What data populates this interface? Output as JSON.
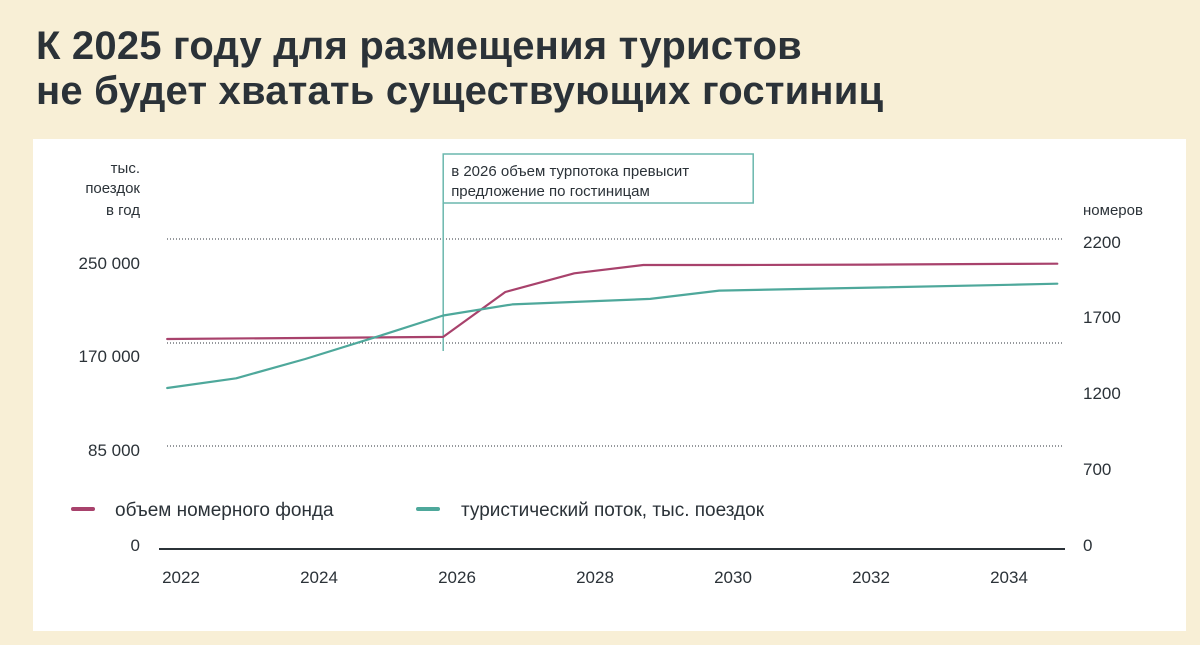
{
  "header": {
    "title_line1": "К 2025 году для размещения туристов",
    "title_line2": "не будет хватать существующих гостиниц"
  },
  "chart_data": {
    "type": "line",
    "title": "К 2025 году для размещения туристов не будет хватать существующих гостиниц",
    "left_axis": {
      "unit_lines": [
        "тыс.",
        "поездок",
        "в год"
      ],
      "ticks": [
        "250 000",
        "170 000",
        "85 000",
        "0"
      ]
    },
    "right_axis": {
      "unit": "номеров",
      "ticks": [
        "2200",
        "1700",
        "1200",
        "700",
        "0"
      ]
    },
    "x_ticks": [
      "2022",
      "2024",
      "2026",
      "2028",
      "2030",
      "2032",
      "2034"
    ],
    "annotation": {
      "line1": "в 2026 объем турпотока превысит",
      "line2": "предложение по гостиницам",
      "x": 2025.8
    },
    "series": [
      {
        "name": "объем номерного фонда",
        "color": "#a8426c",
        "points": [
          [
            2021.8,
            1520
          ],
          [
            2025.8,
            1535
          ],
          [
            2026.7,
            1860
          ],
          [
            2027.7,
            1995
          ],
          [
            2028.7,
            2055
          ],
          [
            2030,
            2055
          ],
          [
            2032,
            2058
          ],
          [
            2034,
            2063
          ],
          [
            2034.7,
            2065
          ]
        ]
      },
      {
        "name": "туристический поток, тыс. поездок",
        "color": "#4ea89b",
        "points": [
          [
            2021.8,
            1165
          ],
          [
            2022.8,
            1235
          ],
          [
            2023.8,
            1375
          ],
          [
            2024.8,
            1530
          ],
          [
            2025.8,
            1690
          ],
          [
            2026.8,
            1770
          ],
          [
            2028.8,
            1810
          ],
          [
            2029.8,
            1870
          ],
          [
            2032,
            1892
          ],
          [
            2034,
            1912
          ],
          [
            2034.7,
            1920
          ]
        ]
      }
    ],
    "grid": true
  }
}
